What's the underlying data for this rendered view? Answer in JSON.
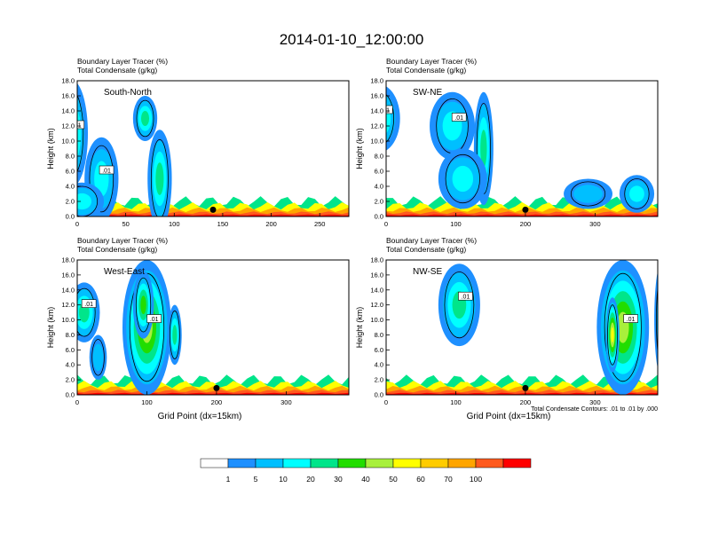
{
  "title": "2014-01-10_12:00:00",
  "chart_data": {
    "type": "heatmap",
    "title": "2014-01-10_12:00:00",
    "shared": {
      "variable_label": "Boundary Layer Tracer",
      "variable_units": "(%)",
      "contour_label": "Total Condensate",
      "contour_units": "(g/kg)",
      "ylabel": "Height (km)",
      "xlabel": "Grid Point (dx=15km)",
      "ylim": [
        0,
        18
      ],
      "yticks": [
        "0.0",
        "2.0",
        "4.0",
        "6.0",
        "8.0",
        "10.0",
        "12.0",
        "14.0",
        "16.0",
        "18.0"
      ],
      "contour_note": "Total Condensate Contours: .01 to .01 by .000",
      "contour_value_label": ".01"
    },
    "panels": [
      {
        "name": "South-North",
        "xlim": [
          0,
          280
        ],
        "xticks": [
          0,
          50,
          100,
          150,
          200,
          250
        ],
        "marker_x": 140,
        "show_xlabel": false
      },
      {
        "name": "SW-NE",
        "xlim": [
          0,
          390
        ],
        "xticks": [
          0,
          100,
          200,
          300
        ],
        "marker_x": 200,
        "show_xlabel": false
      },
      {
        "name": "West-East",
        "xlim": [
          0,
          390
        ],
        "xticks": [
          0,
          100,
          200,
          300
        ],
        "marker_x": 200,
        "show_xlabel": true
      },
      {
        "name": "NW-SE",
        "xlim": [
          0,
          390
        ],
        "xticks": [
          0,
          100,
          200,
          300
        ],
        "marker_x": 200,
        "show_xlabel": true
      }
    ],
    "colorbar": {
      "labels": [
        "1",
        "5",
        "10",
        "20",
        "30",
        "40",
        "50",
        "60",
        "70",
        "100"
      ],
      "colors": [
        "#ffffff",
        "#1e90ff",
        "#00bfff",
        "#00ffff",
        "#00e58a",
        "#22dd00",
        "#a8f03c",
        "#ffff00",
        "#ffcc00",
        "#ffa500",
        "#ff5a1e",
        "#ff0000"
      ]
    }
  }
}
